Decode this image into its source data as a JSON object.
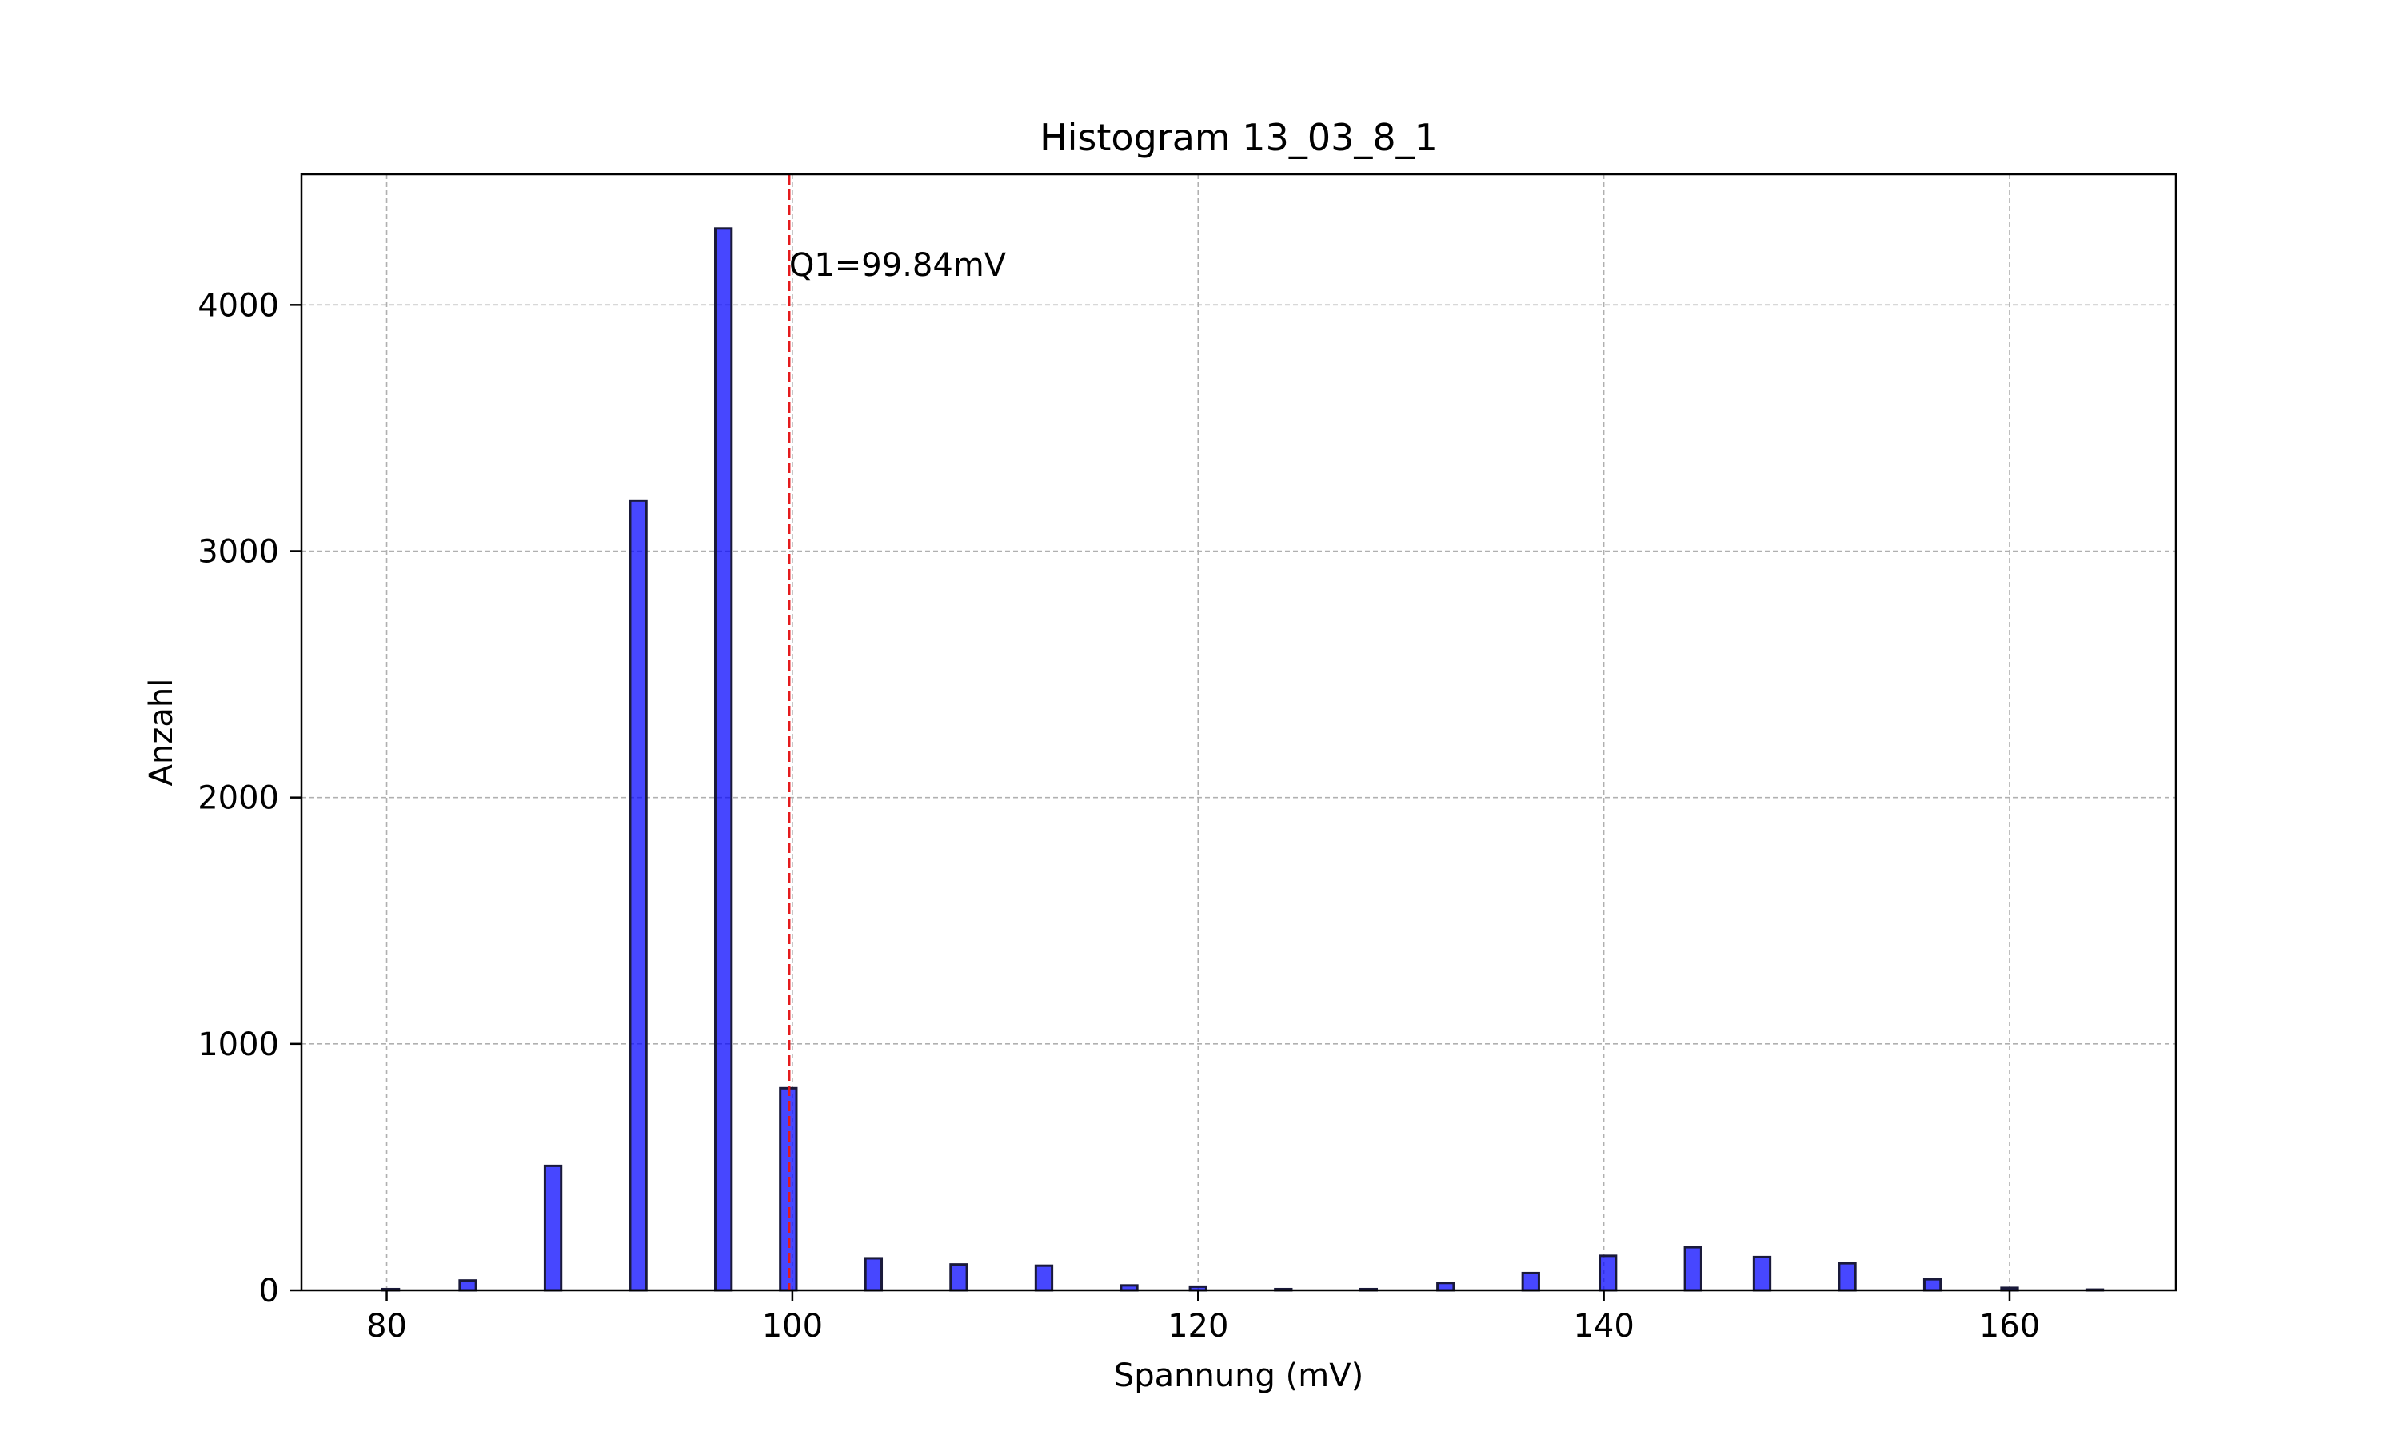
{
  "chart_data": {
    "type": "bar",
    "title": "Histogram 13_03_8_1",
    "xlabel": "Spannung (mV)",
    "ylabel": "Anzahl",
    "xlim": [
      75.8,
      168.2
    ],
    "ylim": [
      0,
      4530
    ],
    "xticks": [
      80,
      100,
      120,
      140,
      160
    ],
    "yticks": [
      0,
      1000,
      2000,
      3000,
      4000
    ],
    "grid": true,
    "bar_width": 0.8,
    "bars": [
      {
        "x": 80.2,
        "y": 5
      },
      {
        "x": 84.0,
        "y": 40
      },
      {
        "x": 88.2,
        "y": 505
      },
      {
        "x": 92.4,
        "y": 3205
      },
      {
        "x": 96.6,
        "y": 4310
      },
      {
        "x": 99.8,
        "y": 820
      },
      {
        "x": 104.0,
        "y": 130
      },
      {
        "x": 108.2,
        "y": 105
      },
      {
        "x": 112.4,
        "y": 100
      },
      {
        "x": 116.6,
        "y": 20
      },
      {
        "x": 120.0,
        "y": 15
      },
      {
        "x": 124.2,
        "y": 5
      },
      {
        "x": 128.4,
        "y": 5
      },
      {
        "x": 132.2,
        "y": 30
      },
      {
        "x": 136.4,
        "y": 70
      },
      {
        "x": 140.2,
        "y": 140
      },
      {
        "x": 144.4,
        "y": 175
      },
      {
        "x": 147.8,
        "y": 135
      },
      {
        "x": 152.0,
        "y": 110
      },
      {
        "x": 156.2,
        "y": 45
      },
      {
        "x": 160.0,
        "y": 10
      },
      {
        "x": 164.2,
        "y": 3
      }
    ],
    "bar_color": "#0000ff",
    "bar_edge_color": "#1a1a3a",
    "reference_line": {
      "x": 99.84,
      "label": "Q1=99.84mV",
      "color": "#e41a1c"
    }
  }
}
